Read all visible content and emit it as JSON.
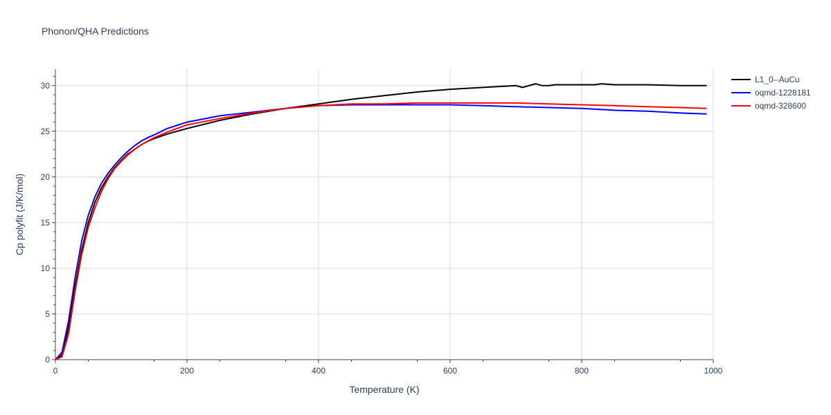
{
  "chart_data": {
    "type": "line",
    "title": "Phonon/QHA Predictions",
    "xlabel": "Temperature (K)",
    "ylabel": "Cp polyfit (J/K/mol)",
    "xlim": [
      0,
      1000
    ],
    "ylim": [
      0,
      31.8
    ],
    "xticks": [
      0,
      200,
      400,
      600,
      800,
      1000
    ],
    "yticks": [
      0,
      5,
      10,
      15,
      20,
      25,
      30
    ],
    "grid": true,
    "legend_position": "top-right",
    "series": [
      {
        "name": "L1_0--AuCu",
        "color": "#000000",
        "x": [
          0,
          10,
          20,
          30,
          40,
          50,
          60,
          70,
          80,
          90,
          100,
          110,
          120,
          130,
          140,
          150,
          170,
          200,
          250,
          300,
          350,
          400,
          450,
          500,
          550,
          600,
          650,
          700,
          710,
          730,
          740,
          750,
          760,
          790,
          800,
          810,
          820,
          830,
          850,
          870,
          900,
          950,
          990
        ],
        "y": [
          0,
          0.5,
          3.5,
          8.0,
          12.0,
          15.0,
          17.2,
          18.8,
          20.0,
          21.0,
          21.8,
          22.5,
          23.0,
          23.5,
          23.9,
          24.2,
          24.7,
          25.3,
          26.2,
          26.9,
          27.5,
          28.0,
          28.5,
          28.9,
          29.3,
          29.6,
          29.8,
          30.0,
          29.8,
          30.2,
          30.0,
          30.0,
          30.1,
          30.1,
          30.1,
          30.1,
          30.1,
          30.2,
          30.1,
          30.1,
          30.1,
          30.0,
          30.0
        ]
      },
      {
        "name": "oqmd-1228181",
        "color": "#0000ff",
        "x": [
          0,
          10,
          20,
          30,
          40,
          50,
          60,
          70,
          80,
          90,
          100,
          110,
          120,
          130,
          140,
          150,
          170,
          200,
          250,
          300,
          350,
          400,
          450,
          500,
          550,
          600,
          650,
          700,
          750,
          800,
          850,
          900,
          950,
          990
        ],
        "y": [
          0,
          0.8,
          4.2,
          9.0,
          13.0,
          15.8,
          17.8,
          19.3,
          20.4,
          21.3,
          22.1,
          22.8,
          23.4,
          23.9,
          24.3,
          24.6,
          25.3,
          26.0,
          26.7,
          27.1,
          27.5,
          27.8,
          27.9,
          27.9,
          27.9,
          27.9,
          27.8,
          27.7,
          27.6,
          27.5,
          27.3,
          27.2,
          27.0,
          26.9
        ]
      },
      {
        "name": "oqmd-328600",
        "color": "#ff0000",
        "x": [
          0,
          10,
          20,
          30,
          40,
          50,
          60,
          70,
          80,
          90,
          100,
          110,
          120,
          130,
          140,
          150,
          170,
          200,
          250,
          300,
          350,
          400,
          450,
          500,
          550,
          600,
          650,
          700,
          750,
          800,
          850,
          900,
          950,
          990
        ],
        "y": [
          0,
          0.3,
          2.8,
          7.5,
          11.5,
          14.5,
          16.6,
          18.4,
          19.8,
          20.9,
          21.7,
          22.4,
          23.0,
          23.5,
          23.9,
          24.3,
          24.9,
          25.7,
          26.4,
          27.0,
          27.5,
          27.8,
          28.0,
          28.0,
          28.1,
          28.1,
          28.1,
          28.1,
          28.0,
          27.9,
          27.8,
          27.7,
          27.6,
          27.5
        ]
      }
    ]
  }
}
